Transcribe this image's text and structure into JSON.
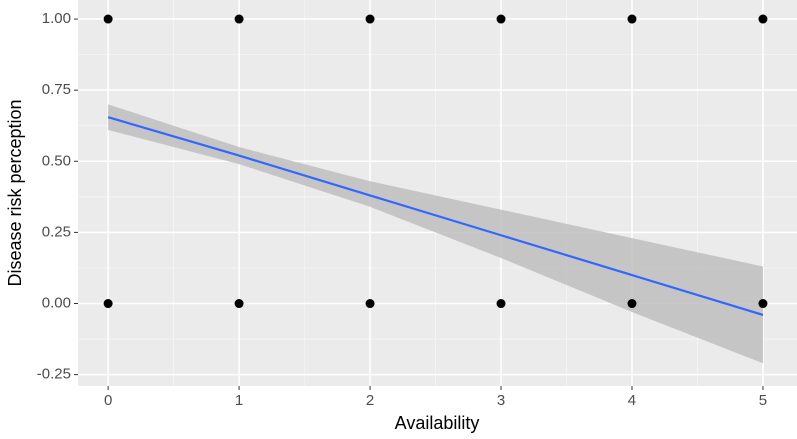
{
  "chart_data": {
    "type": "scatter",
    "xlabel": "Availability",
    "ylabel": "Disease risk perception",
    "xlim": [
      -0.23,
      5.26
    ],
    "ylim": [
      -0.29,
      1.067
    ],
    "xticks": [
      0,
      1,
      2,
      3,
      4,
      5
    ],
    "yticks": [
      {
        "value": -0.25,
        "label": "-0.25"
      },
      {
        "value": 0,
        "label": "0.00"
      },
      {
        "value": 0.25,
        "label": "0.25"
      },
      {
        "value": 0.5,
        "label": "0.50"
      },
      {
        "value": 0.75,
        "label": "0.75"
      },
      {
        "value": 1,
        "label": "1.00"
      }
    ],
    "grid": true,
    "points": {
      "color": "#000000",
      "x": [
        0,
        1,
        2,
        3,
        4,
        5,
        0,
        1,
        2,
        3,
        4,
        5
      ],
      "y": [
        1,
        1,
        1,
        1,
        1,
        1,
        0,
        0,
        0,
        0,
        0,
        0
      ]
    },
    "fit": {
      "color": "#3366ff",
      "band_color": "#bebebe",
      "x": [
        0,
        1,
        2,
        3,
        4,
        5
      ],
      "y": [
        0.655,
        0.52,
        0.38,
        0.24,
        0.1,
        -0.04
      ],
      "lower": [
        0.61,
        0.49,
        0.34,
        0.16,
        -0.03,
        -0.21
      ],
      "upper": [
        0.7,
        0.55,
        0.43,
        0.33,
        0.23,
        0.13
      ]
    }
  }
}
